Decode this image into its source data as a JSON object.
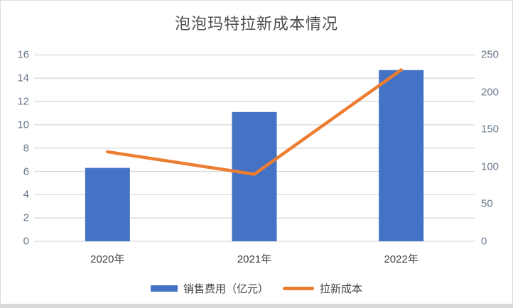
{
  "title": "泡泡玛特拉新成本情况",
  "chart_data": {
    "type": "combo",
    "title": "泡泡玛特拉新成本情况",
    "categories": [
      "2020年",
      "2021年",
      "2022年"
    ],
    "series": [
      {
        "name": "销售费用（亿元）",
        "type": "bar",
        "axis": "left",
        "color": "#4472C4",
        "values": [
          6.3,
          11.1,
          14.7
        ]
      },
      {
        "name": "拉新成本",
        "type": "line",
        "axis": "right",
        "color": "#ED7D31",
        "values": [
          120,
          90,
          230
        ]
      }
    ],
    "left_axis": {
      "min": 0,
      "max": 16,
      "step": 2,
      "ticks": [
        0,
        2,
        4,
        6,
        8,
        10,
        12,
        14,
        16
      ]
    },
    "right_axis": {
      "min": 0,
      "max": 250,
      "step": 50,
      "ticks": [
        0,
        50,
        100,
        150,
        200,
        250
      ]
    },
    "grid": true,
    "gridline_color": "#d9d9d9",
    "legend_position": "bottom"
  }
}
